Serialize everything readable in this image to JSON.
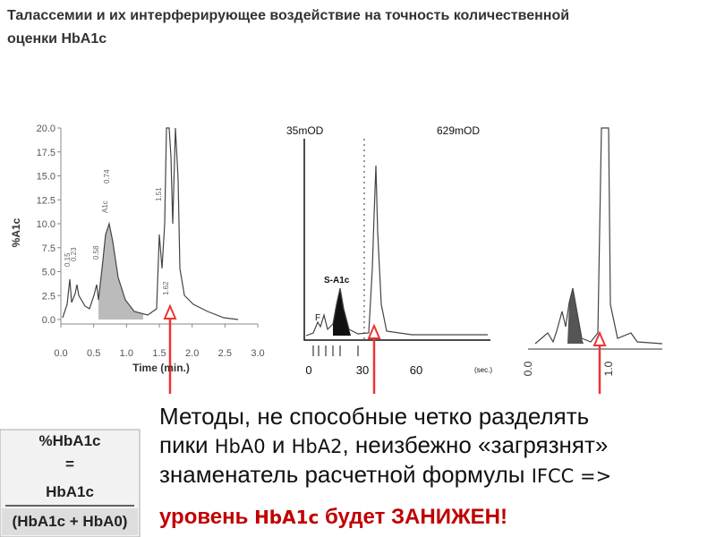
{
  "title": "Талассемии и их интерферирующее воздействие на точность количественной оценки HbA1c",
  "figure1": {
    "ylabel": "%A1c",
    "xlabel": "Time (min.)",
    "yticks": [
      "20.0",
      "17.5",
      "15.0",
      "12.5",
      "10.0",
      "7.5",
      "5.0",
      "2.5",
      "0.0"
    ],
    "xticks": [
      "0.0",
      "0.5",
      "1.0",
      "1.5",
      "2.0",
      "2.5",
      "3.0"
    ],
    "peak_labels": [
      "0.15",
      "0.23",
      "0.58",
      "A1c",
      "0.74",
      "1.51",
      "1.62"
    ]
  },
  "figure2": {
    "left_label": "35mOD",
    "right_label": "629mOD",
    "peak_label": "S-A1c",
    "small_label": "F",
    "xticks": [
      "0",
      "30",
      "60"
    ],
    "xunit": "(sec.)"
  },
  "figure3": {
    "xticks": [
      "0.0",
      "1.0"
    ]
  },
  "text": {
    "lines": [
      [
        {
          "t": "Методы, не способные четко разделять"
        }
      ],
      [
        {
          "t": "пики "
        },
        {
          "t": "HbA0",
          "alt": true
        },
        {
          "t": " и "
        },
        {
          "t": "HbA2",
          "alt": true
        },
        {
          "t": ", неизбежно «загрязнят»"
        }
      ],
      [
        {
          "t": "знаменатель расчетной формулы "
        },
        {
          "t": "IFCC =>",
          "alt": true
        }
      ],
      [
        {
          "t": "уровень ",
          "red": true
        },
        {
          "t": "HbA1c",
          "red": true,
          "alt": true
        },
        {
          "t": " будет ЗАНИЖЕН!",
          "red": true
        }
      ]
    ]
  },
  "formula": {
    "numerator": "%HbA1c",
    "equals": "=",
    "top": "HbA1c",
    "bottom": "(HbA1c + HbA0)"
  }
}
